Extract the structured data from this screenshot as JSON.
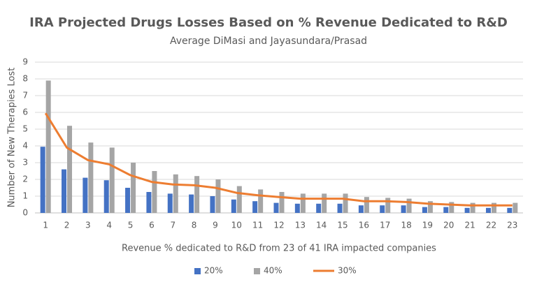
{
  "chart_data": {
    "type": "bar",
    "title": "IRA Projected Drugs Losses Based on % Revenue Dedicated to R&D",
    "subtitle": "Average DiMasi and Jayasundara/Prasad",
    "x_label": "Revenue % dedicated to R&D from 23 of 41 IRA impacted companies",
    "y_label": "Number of New Therapies Lost",
    "categories": [
      "1",
      "2",
      "3",
      "4",
      "5",
      "6",
      "7",
      "8",
      "9",
      "10",
      "11",
      "12",
      "13",
      "14",
      "15",
      "16",
      "17",
      "18",
      "19",
      "20",
      "21",
      "22",
      "23"
    ],
    "series": [
      {
        "name": "20%",
        "color": "#4472c4",
        "type": "bar",
        "values": [
          3.95,
          2.6,
          2.1,
          1.95,
          1.5,
          1.25,
          1.15,
          1.1,
          1.0,
          0.8,
          0.7,
          0.6,
          0.55,
          0.55,
          0.55,
          0.45,
          0.45,
          0.45,
          0.35,
          0.35,
          0.3,
          0.3,
          0.3
        ]
      },
      {
        "name": "40%",
        "color": "#a5a5a5",
        "type": "bar",
        "values": [
          7.9,
          5.2,
          4.2,
          3.9,
          3.0,
          2.5,
          2.3,
          2.2,
          2.0,
          1.6,
          1.4,
          1.25,
          1.15,
          1.15,
          1.15,
          0.95,
          0.9,
          0.85,
          0.7,
          0.65,
          0.6,
          0.6,
          0.6
        ]
      },
      {
        "name": "30%",
        "color": "#ed7d31",
        "type": "line",
        "values": [
          5.95,
          3.9,
          3.15,
          2.9,
          2.25,
          1.85,
          1.7,
          1.65,
          1.5,
          1.2,
          1.05,
          0.95,
          0.85,
          0.85,
          0.85,
          0.7,
          0.7,
          0.65,
          0.55,
          0.5,
          0.45,
          0.45,
          0.45
        ]
      }
    ],
    "ylim": [
      0,
      9
    ],
    "yticks": [
      0,
      1,
      2,
      3,
      4,
      5,
      6,
      7,
      8,
      9
    ],
    "grid": true,
    "legend": "bottom"
  }
}
